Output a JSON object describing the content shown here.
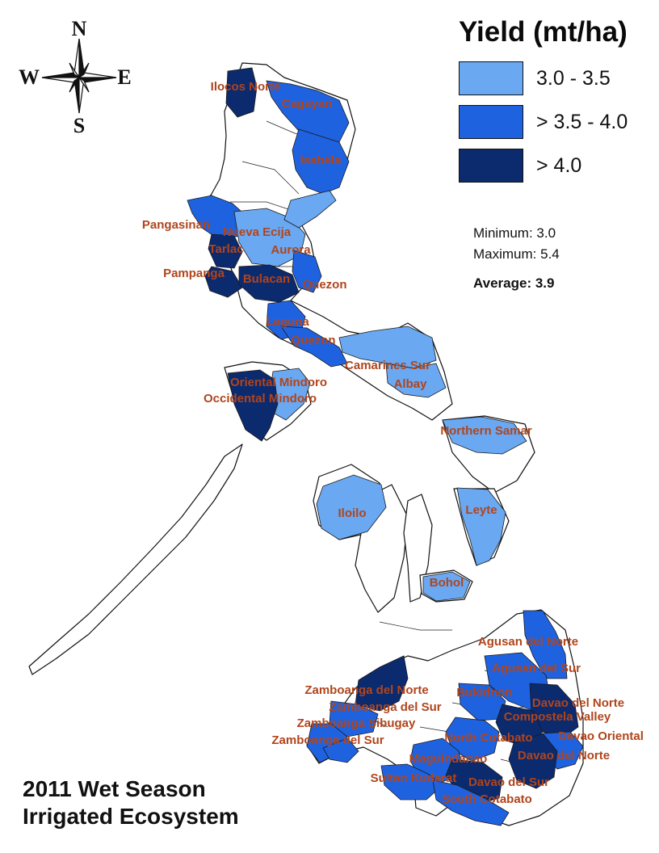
{
  "legend": {
    "title": "Yield (mt/ha)",
    "classes": [
      {
        "label": "3.0 - 3.5",
        "color": "#6aa8f2"
      },
      {
        "label": "> 3.5 - 4.0",
        "color": "#1f62e0"
      },
      {
        "label": "> 4.0",
        "color": "#0c2a6e"
      }
    ]
  },
  "stats": {
    "minimum": "Minimum: 3.0",
    "maximum": "Maximum: 5.4",
    "average": "Average: 3.9"
  },
  "title": {
    "line1": "2011 Wet Season",
    "line2": "Irrigated Ecosystem"
  },
  "compass": {
    "n": "N",
    "s": "S",
    "e": "E",
    "w": "W"
  },
  "provinces": [
    {
      "name": "Ilocos Norte",
      "class": 3
    },
    {
      "name": "Cagayan",
      "class": 2
    },
    {
      "name": "Isabela",
      "class": 2
    },
    {
      "name": "Pangasinan",
      "class": 2
    },
    {
      "name": "Nueva Ecija",
      "class": 1
    },
    {
      "name": "Tarlac",
      "class": 3
    },
    {
      "name": "Aurora",
      "class": 1
    },
    {
      "name": "Pampanga",
      "class": 3
    },
    {
      "name": "Bulacan",
      "class": 3
    },
    {
      "name": "Quezon",
      "class": 2
    },
    {
      "name": "Laguna",
      "class": 2
    },
    {
      "name": "Quezon",
      "class": 2
    },
    {
      "name": "Camarines Sur",
      "class": 1
    },
    {
      "name": "Albay",
      "class": 1
    },
    {
      "name": "Oriental Mindoro",
      "class": 1
    },
    {
      "name": "Occidental Mindoro",
      "class": 3
    },
    {
      "name": "Northern Samar",
      "class": 1
    },
    {
      "name": "Iloilo",
      "class": 1
    },
    {
      "name": "Leyte",
      "class": 1
    },
    {
      "name": "Bohol",
      "class": 1
    },
    {
      "name": "Agusan del Norte",
      "class": 2
    },
    {
      "name": "Agusan del Sur",
      "class": 2
    },
    {
      "name": "Zamboanga del Norte",
      "class": 3
    },
    {
      "name": "Bukidnon",
      "class": 2
    },
    {
      "name": "Davao del Norte",
      "class": 3
    },
    {
      "name": "Zamboanga del Sur",
      "class": 2
    },
    {
      "name": "Compostela Valley",
      "class": 3
    },
    {
      "name": "Zamboanga Sibugay",
      "class": 2
    },
    {
      "name": "Davao Oriental",
      "class": 2
    },
    {
      "name": "Zamboanga del Sur",
      "class": 2
    },
    {
      "name": "North Cotabato",
      "class": 2
    },
    {
      "name": "Davao del Norte",
      "class": 3
    },
    {
      "name": "Maguindanao",
      "class": 2
    },
    {
      "name": "Sultan Kudarat",
      "class": 2
    },
    {
      "name": "Davao del Sur",
      "class": 3
    },
    {
      "name": "South Cotabato",
      "class": 2
    }
  ]
}
